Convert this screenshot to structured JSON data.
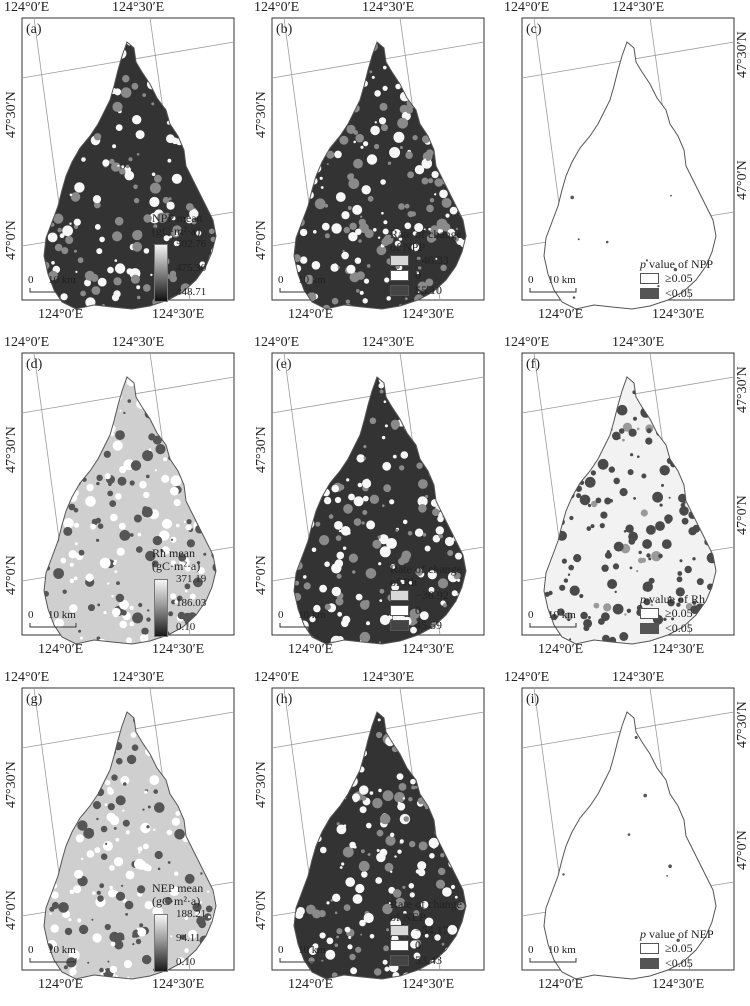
{
  "panels": [
    {
      "letter": "(a)",
      "style": "dark",
      "legend": {
        "kind": "ramp",
        "title": "NPP mean",
        "unit": "(gC·m²·a)",
        "max": "502.76",
        "mid": "475.30",
        "min": "448.71"
      },
      "graticule": {
        "top": [
          "124°0′E",
          "124°30′E"
        ],
        "bottom": [
          "124°0′E",
          "124°30′E"
        ],
        "left": [
          "47°30′N",
          "47°0′N"
        ],
        "right": []
      }
    },
    {
      "letter": "(b)",
      "style": "dark",
      "legend": {
        "kind": "classes",
        "title": "Rate of change",
        "title2": "of NPP",
        "items": [
          {
            "label": "−46.33",
            "color": "#d8d8d8"
          },
          {
            "label": "0",
            "color": "#ffffff"
          },
          {
            "label": "55.10",
            "color": "#444444"
          }
        ]
      },
      "graticule": {
        "top": [
          "124°0′E",
          "124°30′E"
        ],
        "bottom": [
          "124°0′E",
          "124°30′E"
        ],
        "left": [
          "47°30′N",
          "47°0′N"
        ],
        "right": []
      }
    },
    {
      "letter": "(c)",
      "style": "outline",
      "legend": {
        "kind": "pvalue",
        "title_p": "p",
        "title_rest": " value of NPP",
        "items": [
          {
            "label": "≥0.05",
            "color": "#ffffff"
          },
          {
            "label": "<0.05",
            "color": "#555555"
          }
        ]
      },
      "graticule": {
        "top": [
          "124°0′E",
          "124°30′E"
        ],
        "bottom": [
          "124°0′E",
          "124°30′E"
        ],
        "left": [],
        "right": [
          "47°30′N",
          "47°0′N"
        ]
      }
    },
    {
      "letter": "(d)",
      "style": "light",
      "legend": {
        "kind": "ramp",
        "title": "Rh mean",
        "unit": "(gC·m²·a)",
        "max": "371.19",
        "mid": "186.03",
        "min": "0.10"
      },
      "graticule": {
        "top": [
          "124°0′E",
          "124°30′E"
        ],
        "bottom": [
          "124°0′E",
          "124°30′E"
        ],
        "left": [
          "47°30′N",
          "47°0′N"
        ],
        "right": []
      }
    },
    {
      "letter": "(e)",
      "style": "dark",
      "legend": {
        "kind": "classes",
        "title": "Rate of change",
        "title2": "of Rh",
        "items": [
          {
            "label": "−36.92",
            "color": "#d8d8d8"
          },
          {
            "label": "0",
            "color": "#ffffff"
          },
          {
            "label": "45.59",
            "color": "#444444"
          }
        ]
      },
      "graticule": {
        "top": [
          "124°0′E",
          "124°30′E"
        ],
        "bottom": [
          "124°0′E",
          "124°30′E"
        ],
        "left": [
          "47°30′N",
          "47°0′N"
        ],
        "right": []
      }
    },
    {
      "letter": "(f)",
      "style": "speckle",
      "legend": {
        "kind": "pvalue",
        "title_p": "p",
        "title_rest": " value of Rh",
        "items": [
          {
            "label": "≥0.05",
            "color": "#ffffff"
          },
          {
            "label": "<0.05",
            "color": "#555555"
          }
        ]
      },
      "graticule": {
        "top": [
          "124°0′E",
          "124°30′E"
        ],
        "bottom": [
          "124°0′E",
          "124°30′E"
        ],
        "left": [],
        "right": [
          "47°30′N",
          "47°0′N"
        ]
      }
    },
    {
      "letter": "(g)",
      "style": "light",
      "legend": {
        "kind": "ramp",
        "title": "NEP mean",
        "unit": "(gC·m²·a)",
        "max": "188.21",
        "mid": "94.11",
        "min": "0.10"
      },
      "graticule": {
        "top": [
          "124°0′E",
          "124°30′E"
        ],
        "bottom": [
          "124°0′E",
          "124°30′E"
        ],
        "left": [
          "47°30′N",
          "47°0′N"
        ],
        "right": []
      }
    },
    {
      "letter": "(h)",
      "style": "dark",
      "legend": {
        "kind": "classes",
        "title": "Rate of change",
        "title2": "of NEP",
        "items": [
          {
            "label": "−54.17",
            "color": "#d8d8d8"
          },
          {
            "label": "0",
            "color": "#ffffff"
          },
          {
            "label": "53.43",
            "color": "#444444"
          }
        ]
      },
      "graticule": {
        "top": [
          "124°0′E",
          "124°30′E"
        ],
        "bottom": [
          "124°0′E",
          "124°30′E"
        ],
        "left": [
          "47°30′N",
          "47°0′N"
        ],
        "right": []
      }
    },
    {
      "letter": "(i)",
      "style": "outline",
      "legend": {
        "kind": "pvalue",
        "title_p": "p",
        "title_rest": " value of NEP",
        "items": [
          {
            "label": "≥0.05",
            "color": "#ffffff"
          },
          {
            "label": "<0.05",
            "color": "#555555"
          }
        ]
      },
      "graticule": {
        "top": [
          "124°0′E",
          "124°30′E"
        ],
        "bottom": [
          "124°0′E",
          "124°30′E"
        ],
        "left": [],
        "right": [
          "47°30′N",
          "47°0′N"
        ]
      }
    }
  ],
  "scale_bar": {
    "zero": "0",
    "label": "10 km"
  }
}
